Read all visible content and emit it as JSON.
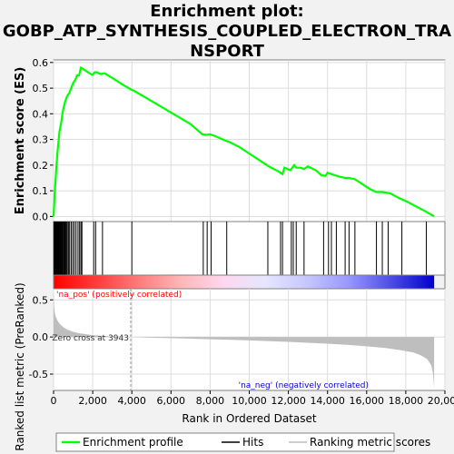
{
  "chart_data": {
    "type": "line",
    "title_lines": [
      "Enrichment plot:",
      "GOBP_ATP_SYNTHESIS_COUPLED_ELECTRON_TRA",
      "NSPORT"
    ],
    "ylabel_top": "Enrichment score (ES)",
    "ylabel_bottom": "Ranked list metric (PreRanked)",
    "xlabel": "Rank in Ordered Dataset",
    "xlim": [
      0,
      20000
    ],
    "x_ticks": [
      0,
      2000,
      4000,
      6000,
      8000,
      10000,
      12000,
      14000,
      16000,
      18000,
      20000
    ],
    "x_tick_labels": [
      "0",
      "2,000",
      "4,000",
      "6,000",
      "8,000",
      "10,000",
      "12,000",
      "14,000",
      "16,000",
      "18,000",
      "20,000"
    ],
    "es_ylim": [
      -0.02,
      0.61
    ],
    "es_ticks": [
      0.0,
      0.1,
      0.2,
      0.3,
      0.4,
      0.5,
      0.6
    ],
    "es_tick_labels": [
      "0.0",
      "0.1",
      "0.2",
      "0.3",
      "0.4",
      "0.5",
      "0.6"
    ],
    "metric_ylim": [
      -0.72,
      0.65
    ],
    "metric_ticks": [
      0.5,
      0.0,
      -0.5
    ],
    "metric_tick_labels": [
      "0.5",
      "0.0",
      "-0.5"
    ],
    "total_genes": 19450,
    "zero_cross": 3943,
    "zero_cross_label": "Zero cross at 3943",
    "pos_label": "'na_pos' (positively correlated)",
    "neg_label": "'na_neg' (negatively correlated)",
    "series": [
      {
        "name": "Enrichment profile",
        "color": "#00ff00",
        "x": [
          0,
          50,
          100,
          150,
          200,
          250,
          300,
          350,
          400,
          450,
          500,
          600,
          700,
          800,
          900,
          1000,
          1100,
          1200,
          1300,
          1400,
          1500,
          1700,
          1900,
          2000,
          2100,
          2200,
          2400,
          2600,
          3000,
          3500,
          3950,
          4100,
          5000,
          6000,
          7000,
          7600,
          7800,
          8000,
          8200,
          8800,
          9000,
          9500,
          10000,
          10500,
          11000,
          11500,
          11700,
          11800,
          12100,
          12300,
          12400,
          12600,
          12800,
          13000,
          13400,
          13700,
          13900,
          14000,
          14200,
          14400,
          14600,
          14900,
          15100,
          15400,
          15800,
          16200,
          16500,
          16800,
          17200,
          17700,
          18000,
          18500,
          19000,
          19450
        ],
        "values": [
          0.0,
          0.08,
          0.14,
          0.2,
          0.25,
          0.29,
          0.33,
          0.35,
          0.37,
          0.4,
          0.42,
          0.45,
          0.47,
          0.48,
          0.5,
          0.52,
          0.53,
          0.55,
          0.55,
          0.58,
          0.575,
          0.565,
          0.555,
          0.552,
          0.562,
          0.562,
          0.555,
          0.558,
          0.54,
          0.515,
          0.495,
          0.49,
          0.45,
          0.405,
          0.36,
          0.32,
          0.318,
          0.32,
          0.315,
          0.295,
          0.29,
          0.27,
          0.245,
          0.22,
          0.195,
          0.175,
          0.165,
          0.19,
          0.18,
          0.2,
          0.19,
          0.19,
          0.185,
          0.195,
          0.18,
          0.16,
          0.158,
          0.17,
          0.165,
          0.16,
          0.155,
          0.15,
          0.15,
          0.145,
          0.125,
          0.105,
          0.095,
          0.095,
          0.09,
          0.07,
          0.06,
          0.04,
          0.02,
          0.0
        ]
      },
      {
        "name": "Hits",
        "color": "#000000",
        "x": [
          20,
          40,
          60,
          80,
          100,
          120,
          140,
          160,
          180,
          200,
          220,
          240,
          260,
          280,
          300,
          330,
          360,
          390,
          420,
          450,
          480,
          520,
          560,
          600,
          650,
          700,
          760,
          820,
          900,
          980,
          1060,
          1150,
          1250,
          1330,
          1400,
          1450,
          2050,
          2150,
          2500,
          4000,
          7650,
          7850,
          8050,
          8850,
          10950,
          11600,
          11700,
          12150,
          12250,
          12400,
          12800,
          13800,
          14050,
          14200,
          14450,
          14900,
          15100,
          15400,
          16500,
          16800,
          17100,
          17800,
          19050
        ]
      },
      {
        "name": "Ranking metric scores",
        "color": "#bebebe",
        "x": [
          0,
          20,
          50,
          100,
          200,
          300,
          500,
          700,
          1000,
          1300,
          1600,
          2000,
          2500,
          3000,
          3500,
          3943,
          5000,
          6000,
          8000,
          10000,
          12000,
          14000,
          15000,
          16000,
          17000,
          17800,
          18400,
          18800,
          19100,
          19300,
          19400,
          19450
        ],
        "values": [
          0.6,
          0.45,
          0.35,
          0.28,
          0.22,
          0.18,
          0.13,
          0.1,
          0.07,
          0.05,
          0.04,
          0.025,
          0.015,
          0.008,
          0.003,
          0.0,
          -0.01,
          -0.015,
          -0.03,
          -0.045,
          -0.065,
          -0.09,
          -0.105,
          -0.125,
          -0.15,
          -0.18,
          -0.21,
          -0.25,
          -0.3,
          -0.38,
          -0.5,
          -0.7
        ]
      }
    ],
    "colorbar_stops": [
      "#ff0000",
      "#ff3b3b",
      "#ff7a7a",
      "#ffb6b6",
      "#ffd6ef",
      "#e6e6ff",
      "#c6c6ff",
      "#9696ff",
      "#4b4be6",
      "#0000cd"
    ],
    "legend": {
      "items": [
        "Enrichment profile",
        "Hits",
        "Ranking metric scores"
      ]
    }
  }
}
